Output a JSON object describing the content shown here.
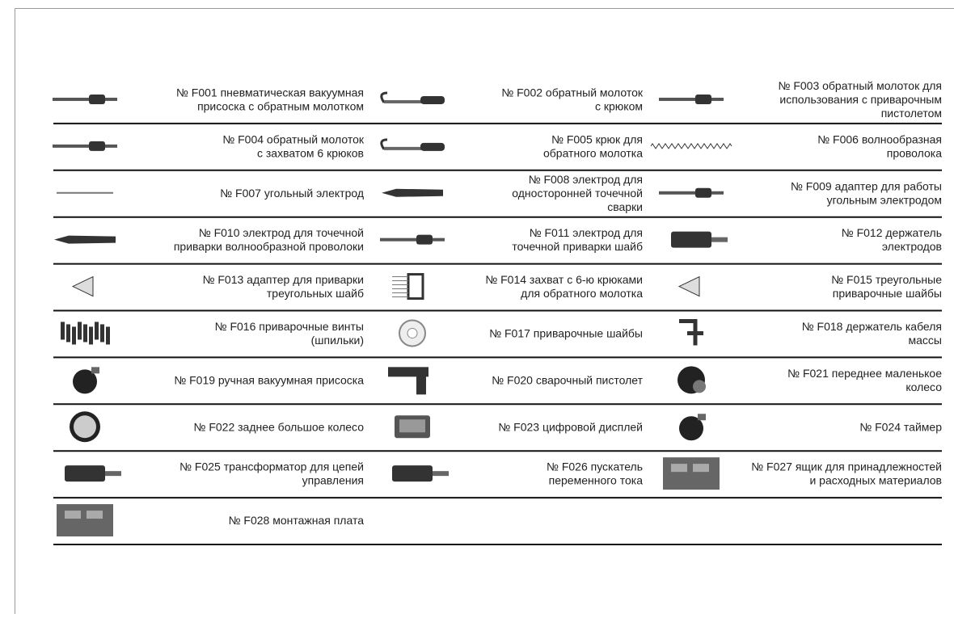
{
  "items": [
    {
      "lines": [
        "№ F001 пневматическая вакуумная",
        "присоска с обратным молотком"
      ]
    },
    {
      "lines": [
        "№ F002 обратный молоток",
        "с крюком"
      ]
    },
    {
      "lines": [
        "№ F003 обратный молоток для",
        "использования с приварочным",
        "пистолетом"
      ]
    },
    {
      "lines": [
        "№ F004 обратный молоток",
        "с захватом 6 крюков"
      ]
    },
    {
      "lines": [
        "№ F005 крюк для",
        "обратного молотка"
      ]
    },
    {
      "lines": [
        "№ F006 волнообразная",
        "проволока"
      ]
    },
    {
      "lines": [
        "№ F007 угольный электрод"
      ]
    },
    {
      "lines": [
        "№ F008 электрод для",
        "односторонней точечной",
        "сварки"
      ]
    },
    {
      "lines": [
        "№ F009 адаптер для работы",
        "угольным электродом"
      ]
    },
    {
      "lines": [
        "№ F010  электрод для точечной",
        "приварки волнообразной проволоки"
      ]
    },
    {
      "lines": [
        "№ F011 электрод для",
        "точечной приварки шайб"
      ]
    },
    {
      "lines": [
        "№ F012 держатель",
        "электродов"
      ]
    },
    {
      "lines": [
        "№ F013 адаптер для приварки",
        "треугольных шайб"
      ]
    },
    {
      "lines": [
        "№ F014 захват с 6-ю крюками",
        "для обратного молотка"
      ]
    },
    {
      "lines": [
        "№ F015 треугольные",
        "приварочные шайбы"
      ]
    },
    {
      "lines": [
        "№ F016 приварочные винты",
        "(шпильки)"
      ]
    },
    {
      "lines": [
        "№ F017 приварочные шайбы"
      ]
    },
    {
      "lines": [
        "№ F018 держатель кабеля",
        "массы"
      ]
    },
    {
      "lines": [
        "№ F019 ручная вакуумная присоска"
      ]
    },
    {
      "lines": [
        "№ F020 сварочный пистолет"
      ]
    },
    {
      "lines": [
        "№ F021 переднее маленькое",
        "колесо"
      ]
    },
    {
      "lines": [
        "№ F022 заднее большое колесо"
      ]
    },
    {
      "lines": [
        "№ F023 цифровой дисплей"
      ]
    },
    {
      "lines": [
        "№ F024 таймер"
      ]
    },
    {
      "lines": [
        "№ F025 трансформатор для цепей",
        "управления"
      ]
    },
    {
      "lines": [
        "№ F026 пускатель",
        "переменного тока"
      ]
    },
    {
      "lines": [
        "№ F027 ящик для принадлежностей",
        "и расходных материалов"
      ]
    },
    {
      "lines": [
        "№ F028 монтажная плата"
      ]
    }
  ]
}
